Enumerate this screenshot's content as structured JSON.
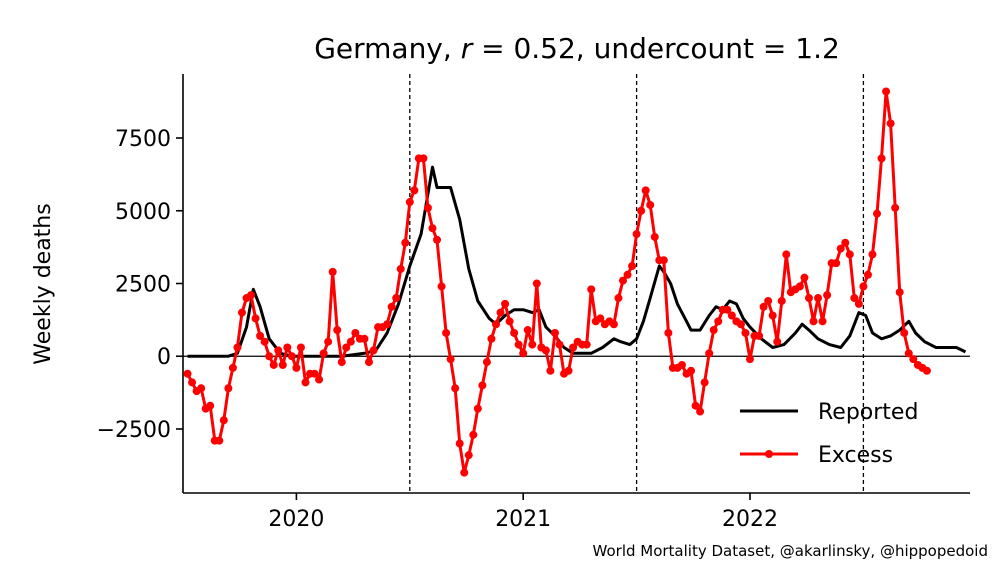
{
  "chart_data": {
    "type": "line",
    "title": "Germany, r = 0.52, undercount = 1.2",
    "title_parts": {
      "country": "Germany, ",
      "r_symbol": "r",
      "r_value": " = 0.52, undercount = 1.2"
    },
    "xlabel": "",
    "ylabel": "Weekly deaths",
    "xlim": [
      2019.5,
      2022.97
    ],
    "ylim": [
      -4700,
      9700
    ],
    "x_ticks": [
      {
        "label": "2020",
        "value": 2020.0
      },
      {
        "label": "2021",
        "value": 2021.0
      },
      {
        "label": "2022",
        "value": 2022.0
      }
    ],
    "y_ticks": [
      {
        "label": "−2500",
        "value": -2500
      },
      {
        "label": "0",
        "value": 0
      },
      {
        "label": "2500",
        "value": 2500
      },
      {
        "label": "5000",
        "value": 5000
      },
      {
        "label": "7500",
        "value": 7500
      }
    ],
    "vlines": [
      2020.5,
      2021.5,
      2022.5
    ],
    "hline": 0,
    "legend": {
      "placement": "lower-right",
      "entries": [
        "Reported",
        "Excess"
      ]
    },
    "series": [
      {
        "name": "Reported",
        "color": "#000000",
        "marker": "none",
        "points": [
          [
            2019.52,
            0
          ],
          [
            2019.62,
            0
          ],
          [
            2019.7,
            0
          ],
          [
            2019.74,
            100
          ],
          [
            2019.78,
            1000
          ],
          [
            2019.81,
            2300
          ],
          [
            2019.84,
            1700
          ],
          [
            2019.88,
            600
          ],
          [
            2019.93,
            100
          ],
          [
            2019.98,
            0
          ],
          [
            2020.1,
            0
          ],
          [
            2020.2,
            0
          ],
          [
            2020.3,
            100
          ],
          [
            2020.35,
            200
          ],
          [
            2020.4,
            800
          ],
          [
            2020.45,
            1800
          ],
          [
            2020.5,
            3100
          ],
          [
            2020.55,
            4200
          ],
          [
            2020.6,
            6500
          ],
          [
            2020.62,
            5800
          ],
          [
            2020.68,
            5800
          ],
          [
            2020.72,
            4700
          ],
          [
            2020.76,
            3000
          ],
          [
            2020.8,
            1900
          ],
          [
            2020.85,
            1300
          ],
          [
            2020.88,
            1100
          ],
          [
            2020.92,
            1400
          ],
          [
            2020.96,
            1600
          ],
          [
            2021.0,
            1600
          ],
          [
            2021.04,
            1500
          ],
          [
            2021.07,
            1600
          ],
          [
            2021.1,
            1000
          ],
          [
            2021.14,
            700
          ],
          [
            2021.18,
            300
          ],
          [
            2021.22,
            100
          ],
          [
            2021.3,
            100
          ],
          [
            2021.35,
            300
          ],
          [
            2021.4,
            600
          ],
          [
            2021.43,
            500
          ],
          [
            2021.47,
            400
          ],
          [
            2021.5,
            600
          ],
          [
            2021.53,
            1200
          ],
          [
            2021.56,
            2000
          ],
          [
            2021.6,
            3100
          ],
          [
            2021.62,
            2900
          ],
          [
            2021.65,
            2500
          ],
          [
            2021.68,
            1800
          ],
          [
            2021.72,
            1200
          ],
          [
            2021.74,
            900
          ],
          [
            2021.78,
            900
          ],
          [
            2021.82,
            1400
          ],
          [
            2021.85,
            1700
          ],
          [
            2021.88,
            1600
          ],
          [
            2021.91,
            1900
          ],
          [
            2021.94,
            1800
          ],
          [
            2021.97,
            1300
          ],
          [
            2022.0,
            1000
          ],
          [
            2022.05,
            600
          ],
          [
            2022.1,
            300
          ],
          [
            2022.15,
            400
          ],
          [
            2022.2,
            800
          ],
          [
            2022.23,
            1100
          ],
          [
            2022.26,
            900
          ],
          [
            2022.3,
            600
          ],
          [
            2022.35,
            400
          ],
          [
            2022.4,
            300
          ],
          [
            2022.44,
            700
          ],
          [
            2022.48,
            1500
          ],
          [
            2022.51,
            1400
          ],
          [
            2022.54,
            800
          ],
          [
            2022.58,
            600
          ],
          [
            2022.62,
            700
          ],
          [
            2022.66,
            900
          ],
          [
            2022.7,
            1200
          ],
          [
            2022.73,
            800
          ],
          [
            2022.77,
            500
          ],
          [
            2022.82,
            300
          ],
          [
            2022.88,
            300
          ],
          [
            2022.91,
            300
          ],
          [
            2022.95,
            150
          ]
        ]
      },
      {
        "name": "Excess",
        "color": "#ff0000",
        "marker": "circle",
        "points": [
          [
            2019.52,
            -600
          ],
          [
            2019.54,
            -900
          ],
          [
            2019.56,
            -1200
          ],
          [
            2019.58,
            -1100
          ],
          [
            2019.6,
            -1800
          ],
          [
            2019.62,
            -1700
          ],
          [
            2019.64,
            -2900
          ],
          [
            2019.66,
            -2900
          ],
          [
            2019.68,
            -2200
          ],
          [
            2019.7,
            -1100
          ],
          [
            2019.72,
            -400
          ],
          [
            2019.74,
            300
          ],
          [
            2019.76,
            1500
          ],
          [
            2019.78,
            2000
          ],
          [
            2019.8,
            2100
          ],
          [
            2019.82,
            1300
          ],
          [
            2019.84,
            700
          ],
          [
            2019.86,
            500
          ],
          [
            2019.88,
            0
          ],
          [
            2019.9,
            -300
          ],
          [
            2019.92,
            200
          ],
          [
            2019.94,
            -300
          ],
          [
            2019.96,
            300
          ],
          [
            2019.98,
            0
          ],
          [
            2020.0,
            -400
          ],
          [
            2020.02,
            300
          ],
          [
            2020.04,
            -900
          ],
          [
            2020.06,
            -600
          ],
          [
            2020.08,
            -600
          ],
          [
            2020.1,
            -800
          ],
          [
            2020.12,
            100
          ],
          [
            2020.14,
            500
          ],
          [
            2020.16,
            2900
          ],
          [
            2020.18,
            900
          ],
          [
            2020.2,
            -200
          ],
          [
            2020.22,
            300
          ],
          [
            2020.24,
            500
          ],
          [
            2020.26,
            800
          ],
          [
            2020.28,
            600
          ],
          [
            2020.3,
            600
          ],
          [
            2020.32,
            -200
          ],
          [
            2020.34,
            200
          ],
          [
            2020.36,
            1000
          ],
          [
            2020.38,
            1000
          ],
          [
            2020.4,
            1100
          ],
          [
            2020.42,
            1700
          ],
          [
            2020.44,
            2000
          ],
          [
            2020.46,
            3000
          ],
          [
            2020.48,
            3900
          ],
          [
            2020.5,
            5300
          ],
          [
            2020.52,
            5700
          ],
          [
            2020.54,
            6800
          ],
          [
            2020.56,
            6800
          ],
          [
            2020.58,
            5100
          ],
          [
            2020.6,
            4400
          ],
          [
            2020.62,
            4000
          ],
          [
            2020.64,
            2400
          ],
          [
            2020.66,
            800
          ],
          [
            2020.68,
            -100
          ],
          [
            2020.7,
            -1100
          ],
          [
            2020.72,
            -3000
          ],
          [
            2020.74,
            -4000
          ],
          [
            2020.76,
            -3400
          ],
          [
            2020.78,
            -2700
          ],
          [
            2020.8,
            -1800
          ],
          [
            2020.82,
            -1000
          ],
          [
            2020.84,
            -200
          ],
          [
            2020.86,
            600
          ],
          [
            2020.88,
            1100
          ],
          [
            2020.9,
            1500
          ],
          [
            2020.92,
            1800
          ],
          [
            2020.94,
            1200
          ],
          [
            2020.96,
            800
          ],
          [
            2020.98,
            400
          ],
          [
            2021.0,
            100
          ],
          [
            2021.02,
            900
          ],
          [
            2021.04,
            400
          ],
          [
            2021.06,
            2500
          ],
          [
            2021.08,
            300
          ],
          [
            2021.1,
            200
          ],
          [
            2021.12,
            -500
          ],
          [
            2021.14,
            800
          ],
          [
            2021.16,
            400
          ],
          [
            2021.18,
            -600
          ],
          [
            2021.2,
            -500
          ],
          [
            2021.22,
            300
          ],
          [
            2021.24,
            500
          ],
          [
            2021.26,
            400
          ],
          [
            2021.28,
            400
          ],
          [
            2021.3,
            2300
          ],
          [
            2021.32,
            1200
          ],
          [
            2021.34,
            1300
          ],
          [
            2021.36,
            1100
          ],
          [
            2021.38,
            1200
          ],
          [
            2021.4,
            1100
          ],
          [
            2021.42,
            2000
          ],
          [
            2021.44,
            2600
          ],
          [
            2021.46,
            2800
          ],
          [
            2021.48,
            3100
          ],
          [
            2021.5,
            4200
          ],
          [
            2021.52,
            5000
          ],
          [
            2021.54,
            5700
          ],
          [
            2021.56,
            5200
          ],
          [
            2021.58,
            4100
          ],
          [
            2021.6,
            3300
          ],
          [
            2021.62,
            3300
          ],
          [
            2021.64,
            800
          ],
          [
            2021.66,
            -400
          ],
          [
            2021.68,
            -400
          ],
          [
            2021.7,
            -300
          ],
          [
            2021.72,
            -600
          ],
          [
            2021.74,
            -500
          ],
          [
            2021.76,
            -1700
          ],
          [
            2021.78,
            -1900
          ],
          [
            2021.8,
            -900
          ],
          [
            2021.82,
            100
          ],
          [
            2021.84,
            900
          ],
          [
            2021.86,
            1200
          ],
          [
            2021.88,
            1600
          ],
          [
            2021.9,
            1600
          ],
          [
            2021.92,
            1400
          ],
          [
            2021.94,
            1200
          ],
          [
            2021.96,
            1100
          ],
          [
            2021.98,
            800
          ],
          [
            2022.0,
            -100
          ],
          [
            2022.02,
            700
          ],
          [
            2022.04,
            700
          ],
          [
            2022.06,
            1700
          ],
          [
            2022.08,
            1900
          ],
          [
            2022.1,
            1400
          ],
          [
            2022.12,
            500
          ],
          [
            2022.14,
            1900
          ],
          [
            2022.16,
            3500
          ],
          [
            2022.18,
            2200
          ],
          [
            2022.2,
            2300
          ],
          [
            2022.22,
            2400
          ],
          [
            2022.24,
            2700
          ],
          [
            2022.26,
            2000
          ],
          [
            2022.28,
            1200
          ],
          [
            2022.3,
            2000
          ],
          [
            2022.32,
            1200
          ],
          [
            2022.34,
            2100
          ],
          [
            2022.36,
            3200
          ],
          [
            2022.38,
            3200
          ],
          [
            2022.4,
            3700
          ],
          [
            2022.42,
            3900
          ],
          [
            2022.44,
            3500
          ],
          [
            2022.46,
            2000
          ],
          [
            2022.48,
            1800
          ],
          [
            2022.5,
            2400
          ],
          [
            2022.52,
            2800
          ],
          [
            2022.54,
            3500
          ],
          [
            2022.56,
            4900
          ],
          [
            2022.58,
            6800
          ],
          [
            2022.6,
            9100
          ],
          [
            2022.62,
            8000
          ],
          [
            2022.64,
            5100
          ],
          [
            2022.66,
            2200
          ],
          [
            2022.68,
            800
          ],
          [
            2022.7,
            100
          ],
          [
            2022.72,
            -100
          ],
          [
            2022.74,
            -300
          ],
          [
            2022.76,
            -400
          ],
          [
            2022.78,
            -500
          ]
        ]
      }
    ]
  },
  "credit": "World Mortality Dataset, @akarlinsky, @hippopedoid"
}
